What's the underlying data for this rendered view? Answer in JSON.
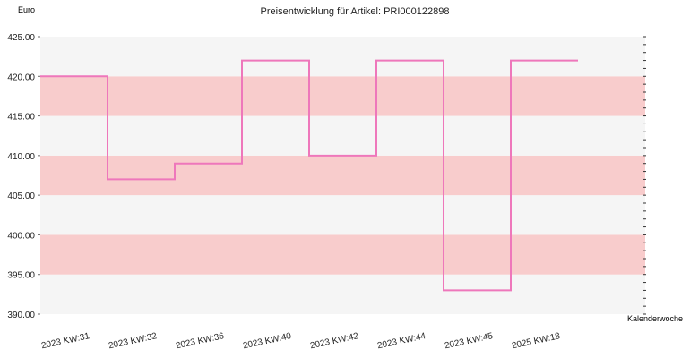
{
  "chart_data": {
    "type": "line",
    "step": true,
    "title": "Preisentwicklung für Artikel: PRI000122898",
    "ylabel": "Euro",
    "xlabel": "Kalenderwoche",
    "ylim": [
      390,
      425
    ],
    "yticks": [
      "390.00",
      "395.00",
      "400.00",
      "405.00",
      "410.00",
      "415.00",
      "420.00",
      "425.00"
    ],
    "categories": [
      "2023 KW:31",
      "2023 KW:32",
      "2023 KW:36",
      "2023 KW:40",
      "2023 KW:42",
      "2023 KW:44",
      "2023 KW:45",
      "2025 KW:18"
    ],
    "series": [
      {
        "values": [
          420,
          407,
          409,
          422,
          410,
          422,
          393,
          422
        ]
      }
    ],
    "colors": {
      "line": "#ee77bb",
      "band_light": "#f5f5f5",
      "band_dark": "#f8cccc"
    },
    "grid": false,
    "legend": "none"
  }
}
